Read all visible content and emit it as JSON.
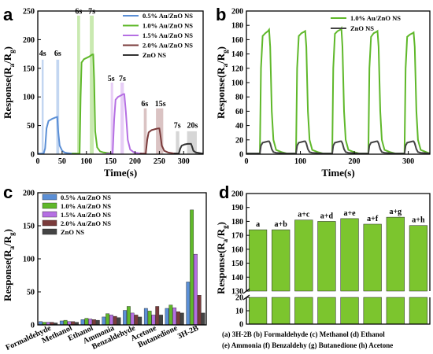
{
  "panels": {
    "a": "a",
    "b": "b",
    "c": "c",
    "d": "d"
  },
  "ylabel": {
    "main": "Response(R",
    "sub_a": "a",
    "slash": "/R",
    "sub_g": "g",
    "close": ")"
  },
  "chart_data": [
    {
      "id": "a",
      "type": "line",
      "xlabel": "Time(s)",
      "ylabel": "Response(Ra/Rg)",
      "xlim": [
        0,
        340
      ],
      "ylim": [
        0,
        250
      ],
      "xticks": [
        0,
        50,
        100,
        150,
        200,
        250,
        300
      ],
      "yticks": [
        0,
        50,
        100,
        150,
        200,
        250
      ],
      "legend_position": "top-right",
      "series": [
        {
          "name": "0.5% Au/ZnO NS",
          "color": "#5b8fd6",
          "band_color": "#b9cfee",
          "x": [
            0,
            12,
            15,
            18,
            22,
            30,
            36,
            40,
            42,
            45,
            50,
            55,
            60,
            65,
            70,
            80
          ],
          "y": [
            1,
            1,
            10,
            45,
            58,
            62,
            64,
            65,
            40,
            15,
            6,
            3,
            2,
            1.5,
            1,
            1
          ],
          "band_x": [
            [
              8,
              12
            ],
            [
              38,
              44
            ]
          ],
          "band_top": 165,
          "annotations": [
            {
              "text": "4s",
              "x": 10,
              "y": 172
            },
            {
              "text": "6s",
              "x": 41,
              "y": 172
            }
          ]
        },
        {
          "name": "1.0% Au/ZnO NS",
          "color": "#5fb82a",
          "band_color": "#bfe5a2",
          "x": [
            70,
            86,
            88,
            90,
            95,
            105,
            112,
            114,
            116,
            118,
            122,
            128,
            135,
            145,
            155
          ],
          "y": [
            1,
            1,
            100,
            160,
            166,
            170,
            174,
            174,
            130,
            40,
            12,
            5,
            3,
            2,
            1
          ],
          "band_x": [
            [
              81,
              87
            ],
            [
              107,
              115
            ]
          ],
          "band_top": 242,
          "annotations": [
            {
              "text": "6s",
              "x": 84,
              "y": 245
            },
            {
              "text": "7s",
              "x": 111,
              "y": 245
            }
          ]
        },
        {
          "name": "1.5% Au/ZnO NS",
          "color": "#b56fe3",
          "band_color": "#e3c6f5",
          "x": [
            140,
            154,
            157,
            160,
            165,
            172,
            176,
            178,
            181,
            185,
            190,
            198,
            208,
            215
          ],
          "y": [
            1,
            1,
            60,
            95,
            100,
            103,
            105,
            105,
            75,
            25,
            8,
            3,
            1.5,
            1
          ],
          "band_x": [
            [
              150,
              155
            ],
            [
              170,
              177
            ]
          ],
          "band_top": 125,
          "annotations": [
            {
              "text": "5s",
              "x": 151,
              "y": 128
            },
            {
              "text": "7s",
              "x": 174,
              "y": 128
            }
          ]
        },
        {
          "name": "2.0% Au/ZnO NS",
          "color": "#7a3b3b",
          "band_color": "#d3b8b8",
          "x": [
            210,
            222,
            225,
            228,
            234,
            242,
            248,
            250,
            252,
            255,
            260,
            268,
            278,
            290
          ],
          "y": [
            1,
            1,
            25,
            38,
            42,
            44,
            45,
            45,
            35,
            15,
            6,
            3,
            1.5,
            1
          ],
          "band_x": [
            [
              218,
              224
            ],
            [
              243,
              258
            ]
          ],
          "band_top": 80,
          "annotations": [
            {
              "text": "6s",
              "x": 220,
              "y": 84
            },
            {
              "text": "15s",
              "x": 252,
              "y": 84
            }
          ]
        },
        {
          "name": "ZnO NS",
          "color": "#333333",
          "band_color": "#cfcfcf",
          "x": [
            280,
            290,
            293,
            296,
            302,
            308,
            313,
            315,
            317,
            320,
            325,
            332,
            340
          ],
          "y": [
            1,
            1,
            10,
            15,
            17,
            18,
            18,
            18,
            14,
            6,
            3,
            2,
            1
          ],
          "band_x": [
            [
              284,
              291
            ],
            [
              307,
              327
            ]
          ],
          "band_top": 40,
          "annotations": [
            {
              "text": "7s",
              "x": 287,
              "y": 46
            },
            {
              "text": "20s",
              "x": 318,
              "y": 46
            }
          ]
        }
      ]
    },
    {
      "id": "b",
      "type": "line",
      "xlabel": "Time(s)",
      "ylabel": "Response(Ra/Rg)",
      "xlim": [
        0,
        340
      ],
      "ylim": [
        0,
        200
      ],
      "xticks": [
        0,
        100,
        200,
        300
      ],
      "yticks": [
        0,
        20,
        40,
        60,
        80,
        100,
        120,
        140,
        160,
        180,
        200
      ],
      "legend_position": "top-right",
      "series": [
        {
          "name": "1.0% Au/ZnO NS",
          "color": "#5fb82a",
          "x": [
            0,
            25,
            27,
            30,
            35,
            40,
            42,
            44,
            47,
            50,
            55,
            65,
            75,
            92,
            94,
            97,
            102,
            107,
            109,
            111,
            114,
            117,
            122,
            132,
            142,
            159,
            161,
            164,
            169,
            174,
            176,
            178,
            181,
            184,
            189,
            199,
            209,
            226,
            228,
            231,
            236,
            241,
            243,
            245,
            248,
            251,
            256,
            266,
            276,
            293,
            295,
            298,
            303,
            308,
            310,
            312,
            315,
            318,
            323,
            333,
            340
          ],
          "y": [
            1,
            1,
            120,
            165,
            169,
            172,
            174,
            150,
            60,
            20,
            6,
            3,
            1,
            1,
            120,
            165,
            169,
            171,
            172,
            150,
            60,
            20,
            6,
            3,
            1,
            1,
            120,
            168,
            172,
            174,
            176,
            150,
            60,
            20,
            6,
            3,
            1,
            1,
            120,
            164,
            169,
            171,
            172,
            150,
            60,
            20,
            6,
            3,
            1,
            1,
            120,
            164,
            167,
            169,
            170,
            150,
            60,
            20,
            6,
            3,
            1
          ]
        },
        {
          "name": "ZnO NS",
          "color": "#444444",
          "x": [
            0,
            25,
            27,
            30,
            35,
            40,
            42,
            44,
            47,
            50,
            55,
            65,
            75,
            92,
            94,
            97,
            102,
            107,
            109,
            111,
            114,
            117,
            122,
            132,
            142,
            159,
            161,
            164,
            169,
            174,
            176,
            178,
            181,
            184,
            189,
            199,
            209,
            226,
            228,
            231,
            236,
            241,
            243,
            245,
            248,
            251,
            256,
            266,
            276,
            293,
            295,
            298,
            303,
            308,
            310,
            312,
            315,
            318,
            323,
            333,
            340
          ],
          "y": [
            1,
            1,
            12,
            16,
            17,
            18,
            18,
            15,
            7,
            3,
            2,
            1.5,
            1,
            1,
            12,
            16,
            17,
            18,
            18,
            15,
            7,
            3,
            2,
            1.5,
            1,
            1,
            12,
            16,
            17,
            18,
            18,
            15,
            7,
            3,
            2,
            1.5,
            1,
            1,
            12,
            16,
            17,
            18,
            18,
            15,
            7,
            3,
            2,
            1.5,
            1,
            1,
            12,
            16,
            17,
            18,
            18,
            15,
            7,
            3,
            2,
            1.5,
            1
          ]
        }
      ]
    },
    {
      "id": "c",
      "type": "bar",
      "xlabel": "",
      "ylabel": "Response(Ra/Rg)",
      "ylim": [
        0,
        200
      ],
      "yticks": [
        0,
        50,
        100,
        150,
        200
      ],
      "legend_position": "top-left",
      "categories": [
        "Formaldehyde",
        "Methanol",
        "Ethanol",
        "Ammonia",
        "Benzaldehyde",
        "Acetone",
        "Butanedione",
        "3H-2B"
      ],
      "series": [
        {
          "name": "0.5% Au/ZnO NS",
          "color": "#5b8fd6",
          "values": [
            5,
            6,
            8,
            12,
            22,
            25,
            25,
            65
          ]
        },
        {
          "name": "1.0% Au/ZnO NS",
          "color": "#5fb82a",
          "values": [
            4,
            7,
            10,
            17,
            28,
            21,
            30,
            174
          ]
        },
        {
          "name": "1.5% Au/ZnO NS",
          "color": "#b56fe3",
          "values": [
            4,
            5,
            9,
            15,
            18,
            15,
            26,
            107
          ]
        },
        {
          "name": "2.0% Au/ZnO NS",
          "color": "#7a3b3b",
          "values": [
            4,
            5,
            8,
            13,
            15,
            28,
            20,
            45
          ]
        },
        {
          "name": "ZnO NS",
          "color": "#444444",
          "values": [
            3,
            4,
            7,
            11,
            12,
            15,
            18,
            18
          ]
        }
      ]
    },
    {
      "id": "d",
      "type": "bar",
      "xlabel": "",
      "ylabel": "Response(Ra/Rg)",
      "broken_axis": true,
      "lower_range": [
        0,
        20
      ],
      "upper_range": [
        130,
        200
      ],
      "yticks_lower": [
        0,
        10,
        20
      ],
      "yticks_upper": [
        130,
        140,
        150,
        160,
        170,
        180,
        190,
        200
      ],
      "color": "#7cc52e",
      "categories": [
        "a",
        "a+b",
        "a+c",
        "a+d",
        "a+e",
        "a+f",
        "a+g",
        "a+h"
      ],
      "values": [
        174,
        174,
        181,
        180,
        182,
        178,
        183,
        177
      ],
      "caption_lines": [
        "(a) 3H-2B (b) Formaldehyde (c) Methanol (d) Ethanol",
        "(e) Ammonia (f) Benzaldehy (g) Butanedione (h) Acetone"
      ]
    }
  ]
}
